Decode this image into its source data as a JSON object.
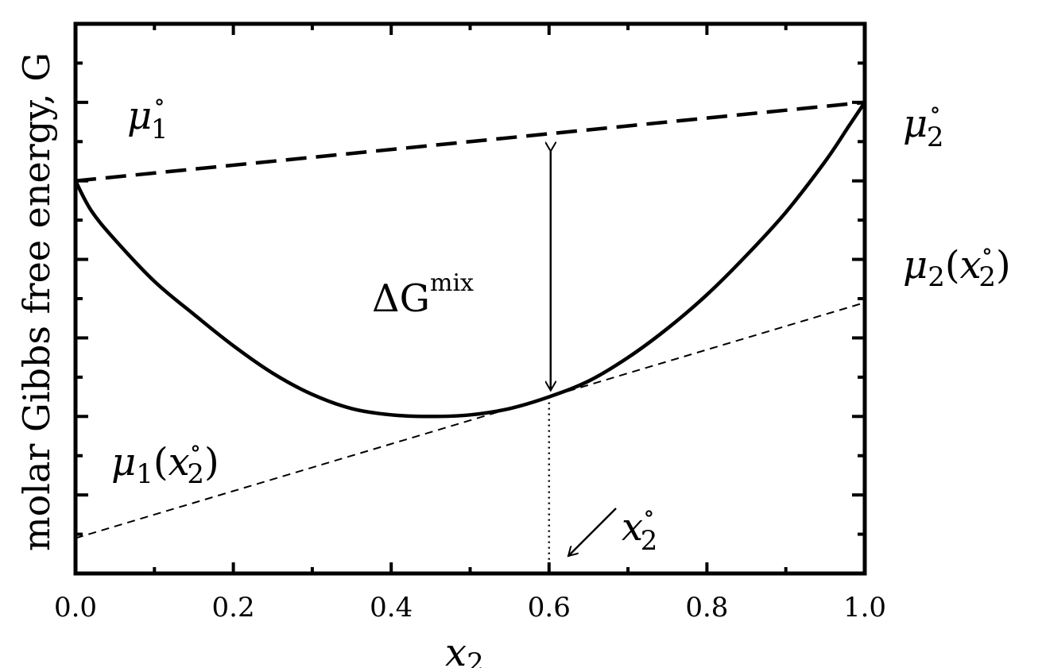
{
  "chart_data": {
    "type": "line",
    "xlabel": "x",
    "xlabel_subscript": "2",
    "ylabel": "molar Gibbs free energy, G",
    "xlim": [
      0.0,
      1.0
    ],
    "ylim": [
      0,
      7
    ],
    "x_ticks": [
      "0.0",
      "0.2",
      "0.4",
      "0.6",
      "0.8",
      "1.0"
    ],
    "y_ticks_labeled": false,
    "grid": false,
    "series": [
      {
        "style": "solid",
        "x": [
          0.0,
          0.02,
          0.05,
          0.1,
          0.15,
          0.2,
          0.25,
          0.3,
          0.35,
          0.4,
          0.45,
          0.5,
          0.55,
          0.6,
          0.65,
          0.7,
          0.75,
          0.8,
          0.85,
          0.9,
          0.95,
          0.98,
          1.0
        ],
        "y": [
          5.0,
          4.62,
          4.25,
          3.72,
          3.3,
          2.9,
          2.55,
          2.28,
          2.1,
          2.02,
          2.0,
          2.02,
          2.1,
          2.25,
          2.45,
          2.75,
          3.12,
          3.55,
          4.05,
          4.6,
          5.25,
          5.7,
          6.0
        ]
      },
      {
        "style": "dashed-thick",
        "x": [
          0.0,
          1.0
        ],
        "y": [
          5.0,
          6.0
        ]
      },
      {
        "style": "dashed-thin",
        "x": [
          0.0,
          1.0
        ],
        "y": [
          0.45,
          3.45
        ]
      }
    ],
    "annotations": {
      "mu1_std": {
        "base": "μ",
        "sub": "1",
        "sup": "∘"
      },
      "mu2_std": {
        "base": "μ",
        "sub": "2",
        "sup": "∘"
      },
      "mu2_x": {
        "base": "μ",
        "sub": "2",
        "open": "(",
        "var": "x",
        "var_sub": "2",
        "var_sup": "∘",
        "close": ")"
      },
      "mu1_x": {
        "base": "μ",
        "sub": "1",
        "open": "(",
        "var": "x",
        "var_sub": "2",
        "var_sup": "∘",
        "close": ")"
      },
      "delta_g": {
        "base": "ΔG",
        "sup": "mix"
      },
      "x2_std": {
        "var": "x",
        "sub": "2",
        "sup": "∘"
      }
    },
    "marker_x": 0.6
  }
}
